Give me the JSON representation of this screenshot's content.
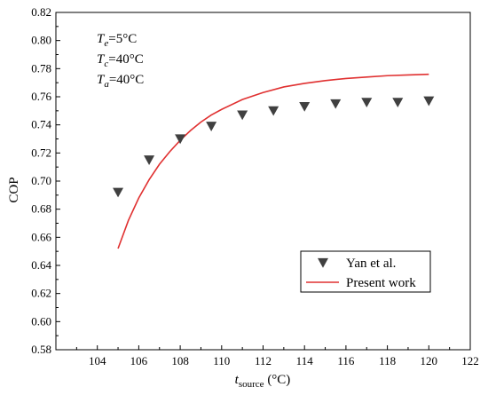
{
  "chart_data": {
    "type": "scatter",
    "xlabel": {
      "main": "t",
      "sub": "source",
      "unit": " (°C)"
    },
    "ylabel": "COP",
    "xlim": [
      102,
      122
    ],
    "ylim": [
      0.58,
      0.82
    ],
    "xticks": [
      104,
      106,
      108,
      110,
      112,
      114,
      116,
      118,
      120,
      122
    ],
    "yticks": [
      0.58,
      0.6,
      0.62,
      0.64,
      0.66,
      0.68,
      0.7,
      0.72,
      0.74,
      0.76,
      0.78,
      0.8,
      0.82
    ],
    "yticks_text": [
      "0.58",
      "0.60",
      "0.62",
      "0.64",
      "0.66",
      "0.68",
      "0.70",
      "0.72",
      "0.74",
      "0.76",
      "0.78",
      "0.80",
      "0.82"
    ],
    "annotations": [
      {
        "sym": "T",
        "sub": "e",
        "rest": "=5°C"
      },
      {
        "sym": "T",
        "sub": "c",
        "rest": "=40°C"
      },
      {
        "sym": "T",
        "sub": "a",
        "rest": "=40°C"
      }
    ],
    "series": [
      {
        "name": "Yan et al.",
        "kind": "markers",
        "color": "#404040",
        "x": [
          105,
          106.5,
          108,
          109.5,
          111,
          112.5,
          114,
          115.5,
          117,
          118.5,
          120
        ],
        "y": [
          0.692,
          0.715,
          0.73,
          0.739,
          0.747,
          0.75,
          0.753,
          0.755,
          0.756,
          0.756,
          0.757
        ]
      },
      {
        "name": "Present work",
        "kind": "line",
        "color": "#e03030",
        "x": [
          105,
          105.5,
          106,
          106.5,
          107,
          107.5,
          108,
          108.5,
          109,
          109.5,
          110,
          111,
          112,
          113,
          114,
          115,
          116,
          117,
          118,
          119,
          120
        ],
        "y": [
          0.652,
          0.672,
          0.688,
          0.701,
          0.712,
          0.721,
          0.729,
          0.736,
          0.742,
          0.747,
          0.751,
          0.758,
          0.763,
          0.767,
          0.7695,
          0.7715,
          0.773,
          0.774,
          0.775,
          0.7755,
          0.776
        ]
      }
    ],
    "legend_position": "bottom-right"
  }
}
